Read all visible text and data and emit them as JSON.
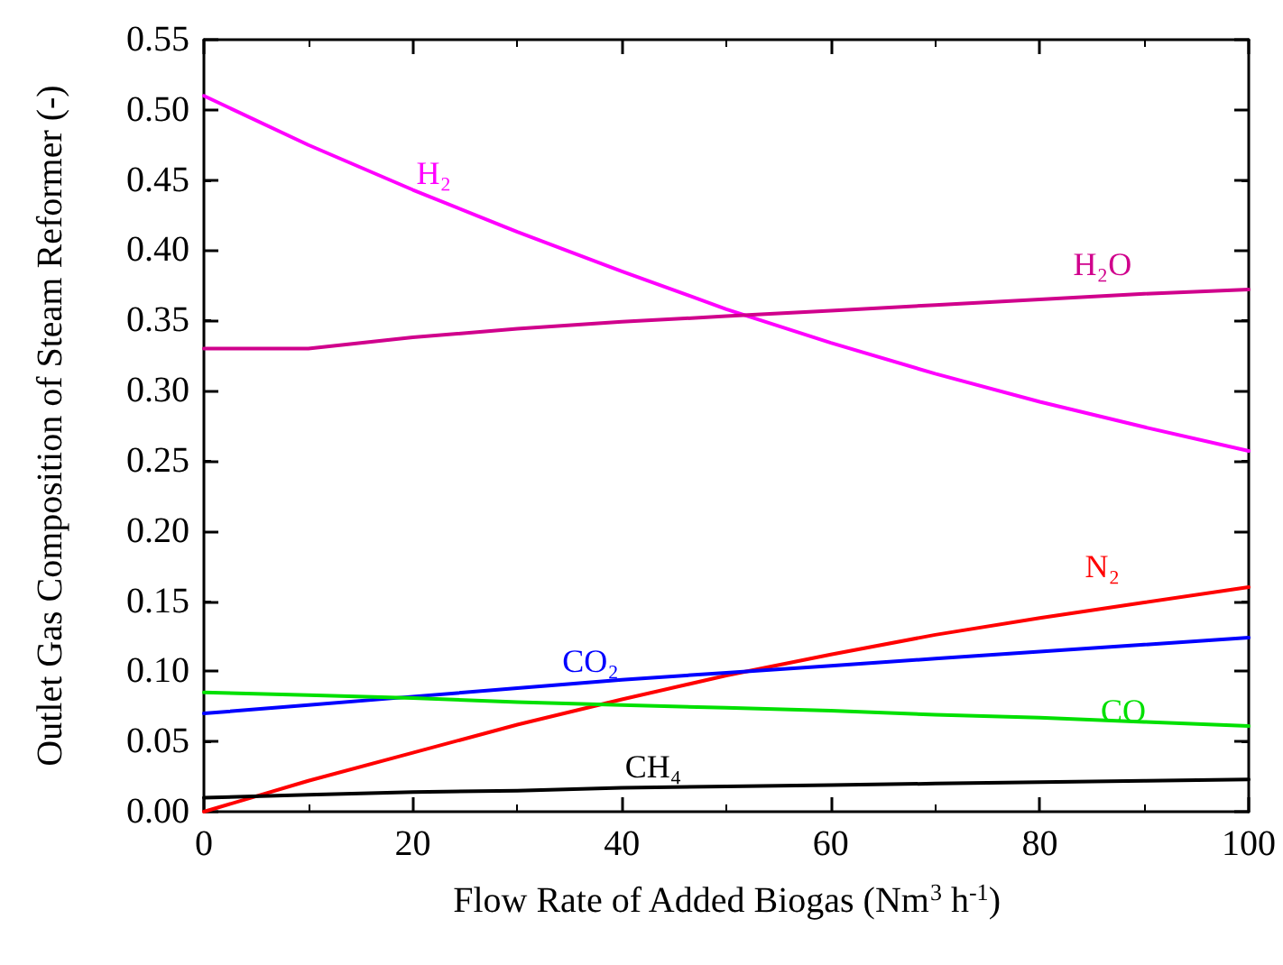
{
  "chart_data": {
    "type": "line",
    "xlabel": "Flow Rate of Added Biogas (Nm$^{3}$ h$^{-1}$)",
    "ylabel": "Outlet Gas Composition of Steam Reformer (-)",
    "x": [
      0,
      10,
      20,
      30,
      40,
      50,
      60,
      70,
      80,
      90,
      100
    ],
    "series": [
      {
        "name": "H₂",
        "color": "#ff00ff",
        "values": [
          0.51,
          0.475,
          0.443,
          0.413,
          0.385,
          0.358,
          0.334,
          0.312,
          0.292,
          0.274,
          0.257
        ]
      },
      {
        "name": "H₂O",
        "color": "#d0008c",
        "values": [
          0.33,
          0.33,
          0.338,
          0.344,
          0.349,
          0.353,
          0.357,
          0.361,
          0.365,
          0.369,
          0.372
        ]
      },
      {
        "name": "N₂",
        "color": "#ff0000",
        "values": [
          0.0,
          0.022,
          0.042,
          0.062,
          0.08,
          0.097,
          0.112,
          0.126,
          0.138,
          0.149,
          0.16
        ]
      },
      {
        "name": "CO₂",
        "color": "#0000ff",
        "values": [
          0.07,
          0.076,
          0.082,
          0.088,
          0.094,
          0.099,
          0.104,
          0.109,
          0.114,
          0.119,
          0.124
        ]
      },
      {
        "name": "CO",
        "color": "#00e000",
        "values": [
          0.085,
          0.083,
          0.081,
          0.078,
          0.076,
          0.074,
          0.072,
          0.069,
          0.067,
          0.064,
          0.061
        ]
      },
      {
        "name": "CH₄",
        "color": "#000000",
        "values": [
          0.01,
          0.012,
          0.014,
          0.015,
          0.017,
          0.018,
          0.019,
          0.02,
          0.021,
          0.022,
          0.023
        ]
      }
    ],
    "xlim": [
      0,
      100
    ],
    "xticks": [
      0,
      20,
      40,
      60,
      80,
      100
    ],
    "ylim": [
      0,
      0.55
    ],
    "yticks": [
      {
        "value": 0,
        "label": "0.00"
      },
      {
        "value": 0.05,
        "label": "0.05"
      },
      {
        "value": 0.1,
        "label": "0.10"
      },
      {
        "value": 0.15,
        "label": "0.15"
      },
      {
        "value": 0.2,
        "label": "0.20"
      },
      {
        "value": 0.25,
        "label": "0.25"
      },
      {
        "value": 0.3,
        "label": "0.30"
      },
      {
        "value": 0.35,
        "label": "0.35"
      },
      {
        "value": 0.4,
        "label": "0.40"
      },
      {
        "value": 0.45,
        "label": "0.45"
      },
      {
        "value": 0.5,
        "label": "0.50"
      },
      {
        "value": 0.55,
        "label": "0.55"
      }
    ],
    "grid": false,
    "legend": false,
    "marker": "none",
    "line_style": "solid"
  }
}
